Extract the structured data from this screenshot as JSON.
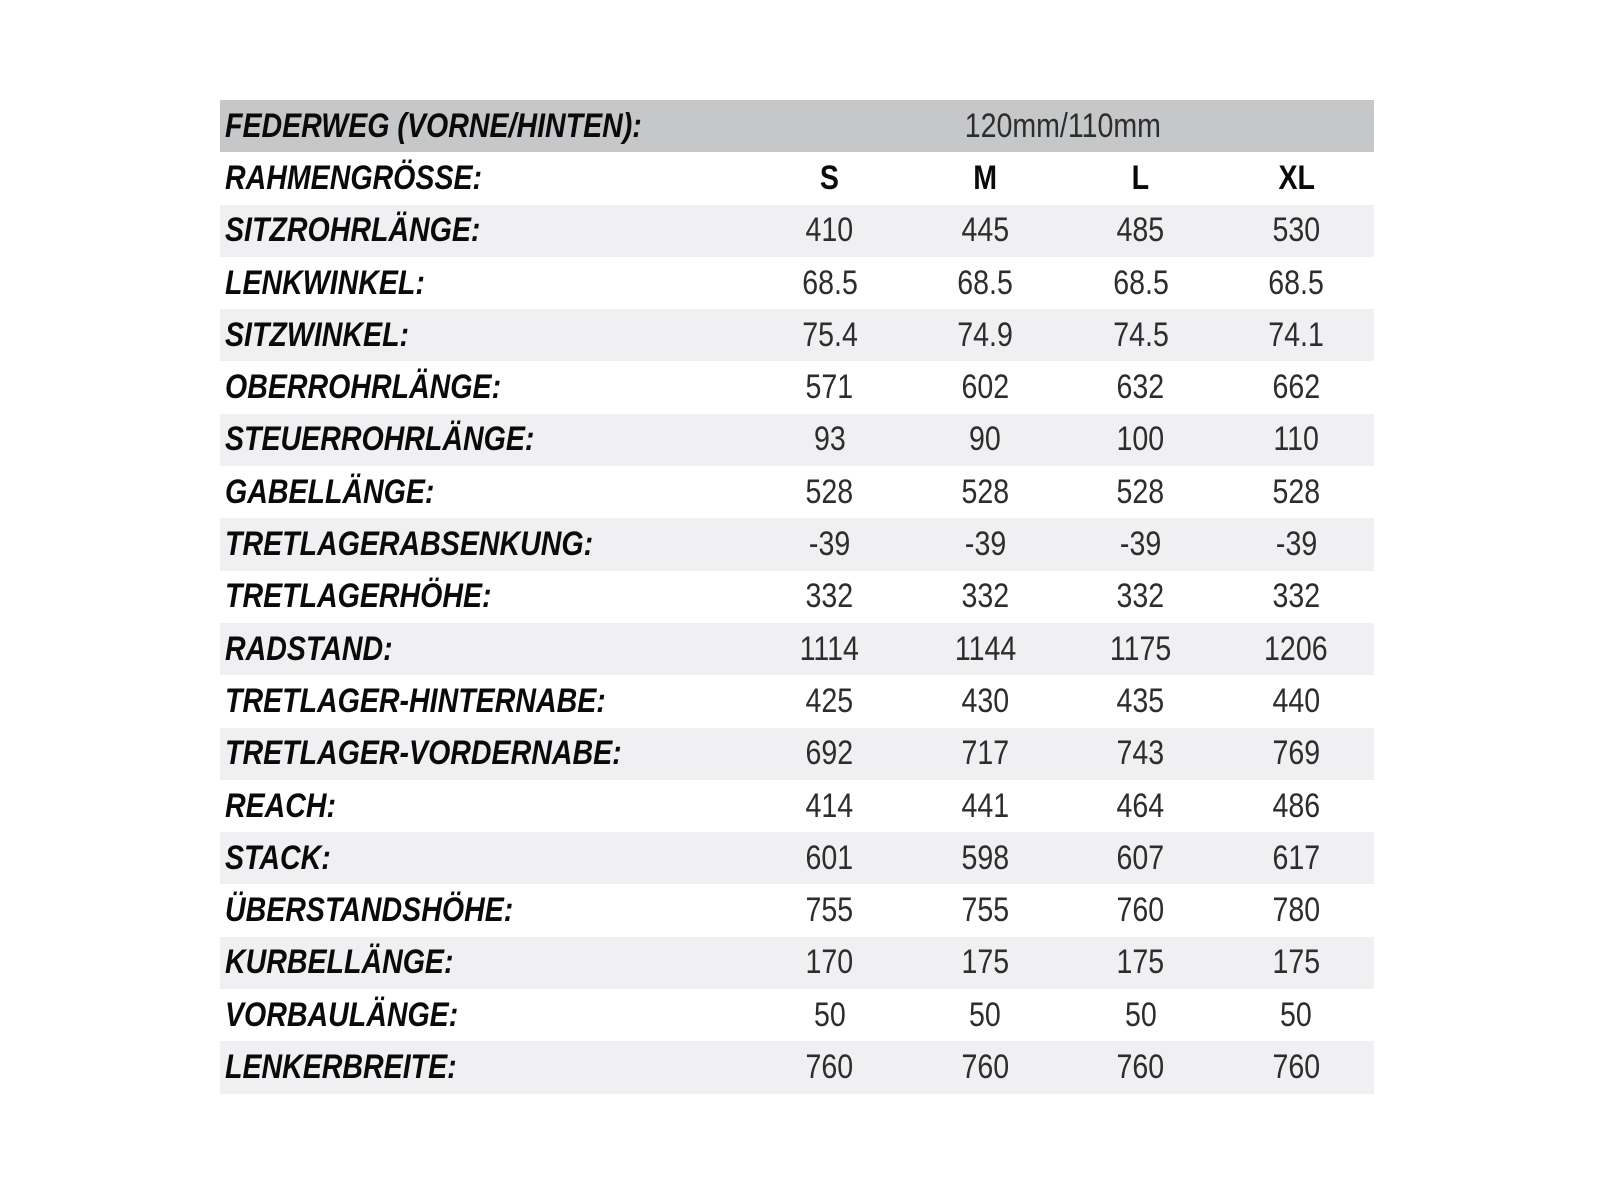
{
  "chart_data": {
    "type": "table",
    "suspension_row": {
      "label": "FEDERWEG (VORNE/HINTEN):",
      "value": "120mm/110mm"
    },
    "size_row": {
      "label": "RAHMENGRÖSSE:",
      "sizes": [
        "S",
        "M",
        "L",
        "XL"
      ]
    },
    "rows": [
      {
        "label": "SITZROHRLÄNGE:",
        "values": [
          "410",
          "445",
          "485",
          "530"
        ]
      },
      {
        "label": "LENKWINKEL:",
        "values": [
          "68.5",
          "68.5",
          "68.5",
          "68.5"
        ]
      },
      {
        "label": "SITZWINKEL:",
        "values": [
          "75.4",
          "74.9",
          "74.5",
          "74.1"
        ]
      },
      {
        "label": "OBERROHRLÄNGE:",
        "values": [
          "571",
          "602",
          "632",
          "662"
        ]
      },
      {
        "label": "STEUERROHRLÄNGE:",
        "values": [
          "93",
          "90",
          "100",
          "110"
        ]
      },
      {
        "label": "GABELLÄNGE:",
        "values": [
          "528",
          "528",
          "528",
          "528"
        ]
      },
      {
        "label": "TRETLAGERABSENKUNG:",
        "values": [
          "-39",
          "-39",
          "-39",
          "-39"
        ]
      },
      {
        "label": "TRETLAGERHÖHE:",
        "values": [
          "332",
          "332",
          "332",
          "332"
        ]
      },
      {
        "label": "RADSTAND:",
        "values": [
          "1114",
          "1144",
          "1175",
          "1206"
        ]
      },
      {
        "label": "TRETLAGER-HINTERNABE:",
        "values": [
          "425",
          "430",
          "435",
          "440"
        ]
      },
      {
        "label": "TRETLAGER-VORDERNABE:",
        "values": [
          "692",
          "717",
          "743",
          "769"
        ]
      },
      {
        "label": "REACH:",
        "values": [
          "414",
          "441",
          "464",
          "486"
        ]
      },
      {
        "label": "STACK:",
        "values": [
          "601",
          "598",
          "607",
          "617"
        ]
      },
      {
        "label": "ÜBERSTANDSHÖHE:",
        "values": [
          "755",
          "755",
          "760",
          "780"
        ]
      },
      {
        "label": "KURBELLÄNGE:",
        "values": [
          "170",
          "175",
          "175",
          "175"
        ]
      },
      {
        "label": "VORBAULÄNGE:",
        "values": [
          "50",
          "50",
          "50",
          "50"
        ]
      },
      {
        "label": "LENKERBREITE:",
        "values": [
          "760",
          "760",
          "760",
          "760"
        ]
      }
    ],
    "colors": {
      "header_bg": "#c5c7c9",
      "alt_row_bg": "#f0f0f2",
      "row_bg": "#ffffff",
      "label_text": "#0a0a0a",
      "value_text": "#2d2d2d"
    },
    "layout": {
      "legend_position": "none",
      "grid": "row-banding",
      "first_data_row_shaded": true
    }
  }
}
